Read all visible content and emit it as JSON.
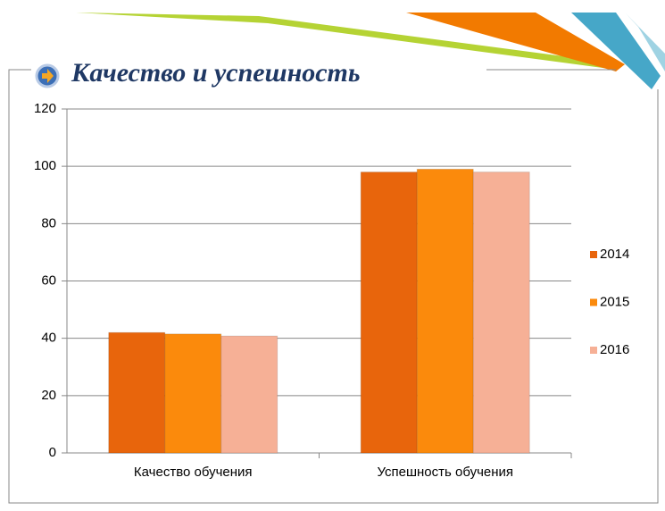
{
  "chart_data": {
    "type": "bar",
    "title": "Качество и успешность",
    "categories": [
      "Качество обучения",
      "Успешность обучения"
    ],
    "series": [
      {
        "name": "2014",
        "color": "#e8650c",
        "values": [
          42,
          98
        ]
      },
      {
        "name": "2015",
        "color": "#fb8a0c",
        "values": [
          41.5,
          99
        ]
      },
      {
        "name": "2016",
        "color": "#f6b096",
        "values": [
          40.8,
          98
        ]
      }
    ],
    "ylim": [
      0,
      120
    ],
    "yticks": [
      0,
      20,
      40,
      60,
      80,
      100,
      120
    ],
    "grid": true,
    "legend": "right"
  }
}
